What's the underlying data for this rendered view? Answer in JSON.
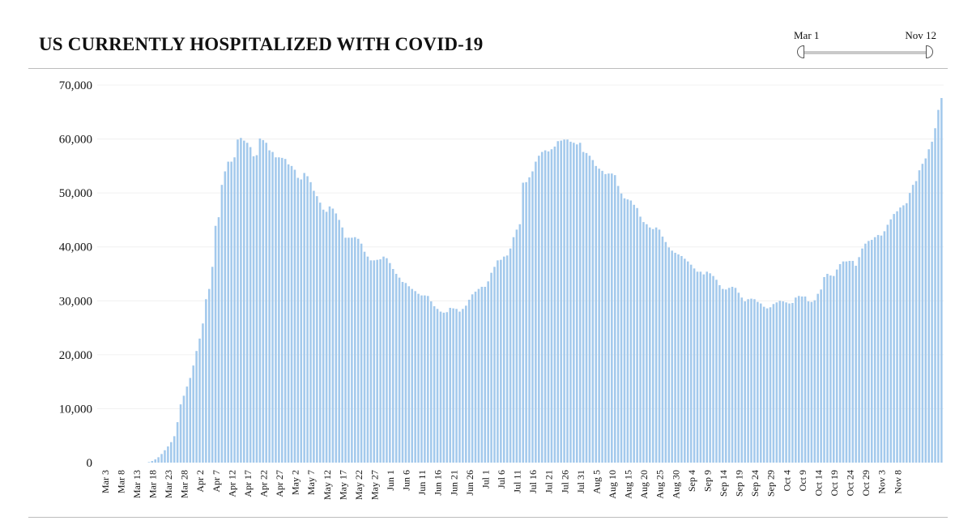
{
  "range_slider": {
    "start_label": "Mar 1",
    "end_label": "Nov 12"
  },
  "chart_data": {
    "type": "bar",
    "title": "US CURRENTLY HOSPITALIZED WITH COVID-19",
    "xlabel": "",
    "ylabel": "",
    "ylim": [
      0,
      70000
    ],
    "yticks": [
      0,
      10000,
      20000,
      30000,
      40000,
      50000,
      60000,
      70000
    ],
    "ytick_labels": [
      "0",
      "10,000",
      "20,000",
      "30,000",
      "40,000",
      "50,000",
      "60,000",
      "70,000"
    ],
    "start_date": "2020-03-01",
    "end_date": "2020-11-12",
    "xtick_labels": [
      "Mar 3",
      "Mar 8",
      "Mar 13",
      "Mar 18",
      "Mar 23",
      "Mar 28",
      "Apr 2",
      "Apr 7",
      "Apr 12",
      "Apr 17",
      "Apr 22",
      "Apr 27",
      "May 2",
      "May 7",
      "May 12",
      "May 17",
      "May 22",
      "May 27",
      "Jun 1",
      "Jun 6",
      "Jun 11",
      "Jun 16",
      "Jun 21",
      "Jun 26",
      "Jul 1",
      "Jul 6",
      "Jul 11",
      "Jul 16",
      "Jul 21",
      "Jul 26",
      "Jul 31",
      "Aug 5",
      "Aug 10",
      "Aug 15",
      "Aug 20",
      "Aug 25",
      "Aug 30",
      "Sep 4",
      "Sep 9",
      "Sep 14",
      "Sep 19",
      "Sep 24",
      "Sep 29",
      "Oct 4",
      "Oct 9",
      "Oct 14",
      "Oct 19",
      "Oct 24",
      "Oct 29",
      "Nov 3",
      "Nov 8"
    ],
    "grid": true,
    "bar_color": "#a3c9ec",
    "series": [
      {
        "values": [
          0,
          0,
          0,
          0,
          0,
          0,
          0,
          0,
          0,
          0,
          0,
          0,
          0,
          0,
          0,
          0,
          100,
          300,
          600,
          1000,
          1600,
          2300,
          3000,
          3800,
          4900,
          7500,
          10800,
          12400,
          14100,
          15700,
          18000,
          20700,
          23000,
          25800,
          30300,
          32200,
          36300,
          43900,
          45500,
          51500,
          54000,
          55800,
          55800,
          56600,
          59900,
          60200,
          59700,
          59300,
          58500,
          56800,
          57000,
          60100,
          59800,
          59300,
          57900,
          57600,
          56600,
          56600,
          56500,
          56300,
          55300,
          55000,
          54300,
          52800,
          52500,
          53700,
          53100,
          52000,
          50400,
          49400,
          48200,
          46900,
          46500,
          47500,
          47100,
          46200,
          45000,
          43600,
          41700,
          41700,
          41700,
          41800,
          41500,
          40600,
          39100,
          38200,
          37500,
          37500,
          37600,
          37700,
          38200,
          37900,
          37000,
          35900,
          35000,
          34300,
          33500,
          33300,
          32700,
          32200,
          31800,
          31300,
          31000,
          31000,
          30900,
          29900,
          29000,
          28500,
          28000,
          27800,
          27900,
          28700,
          28600,
          28500,
          28000,
          28500,
          29100,
          30200,
          31200,
          31700,
          32200,
          32600,
          32600,
          33600,
          35200,
          36300,
          37500,
          37600,
          38200,
          38400,
          39700,
          41800,
          43200,
          44200,
          51900,
          52000,
          52900,
          54000,
          55800,
          56900,
          57600,
          57900,
          57700,
          58100,
          58600,
          59600,
          59700,
          59900,
          59900,
          59500,
          59300,
          59000,
          59300,
          57600,
          57400,
          56900,
          56100,
          55000,
          54500,
          54100,
          53500,
          53600,
          53600,
          53300,
          51300,
          49900,
          49000,
          48800,
          48600,
          47800,
          47200,
          45600,
          44600,
          44200,
          43600,
          43300,
          43600,
          43200,
          41900,
          40900,
          39900,
          39300,
          38900,
          38600,
          38300,
          37800,
          37300,
          36700,
          36000,
          35400,
          35400,
          34900,
          35400,
          35100,
          34600,
          33900,
          32900,
          32200,
          32100,
          32400,
          32600,
          32400,
          31500,
          30600,
          29900,
          30300,
          30400,
          30300,
          29800,
          29500,
          28900,
          28600,
          28800,
          29400,
          29700,
          30000,
          29900,
          29700,
          29500,
          29600,
          30600,
          30900,
          30800,
          30800,
          29900,
          29800,
          30100,
          31300,
          32100,
          34400,
          35000,
          34700,
          34600,
          35800,
          36800,
          37300,
          37300,
          37400,
          37400,
          36500,
          38100,
          39700,
          40600,
          41100,
          41300,
          41800,
          42200,
          42100,
          42900,
          44100,
          45100,
          46100,
          46600,
          47300,
          47700,
          48100,
          50000,
          51500,
          52200,
          54200,
          55400,
          56400,
          58100,
          59500,
          62000,
          65400,
          67600
        ]
      }
    ]
  }
}
